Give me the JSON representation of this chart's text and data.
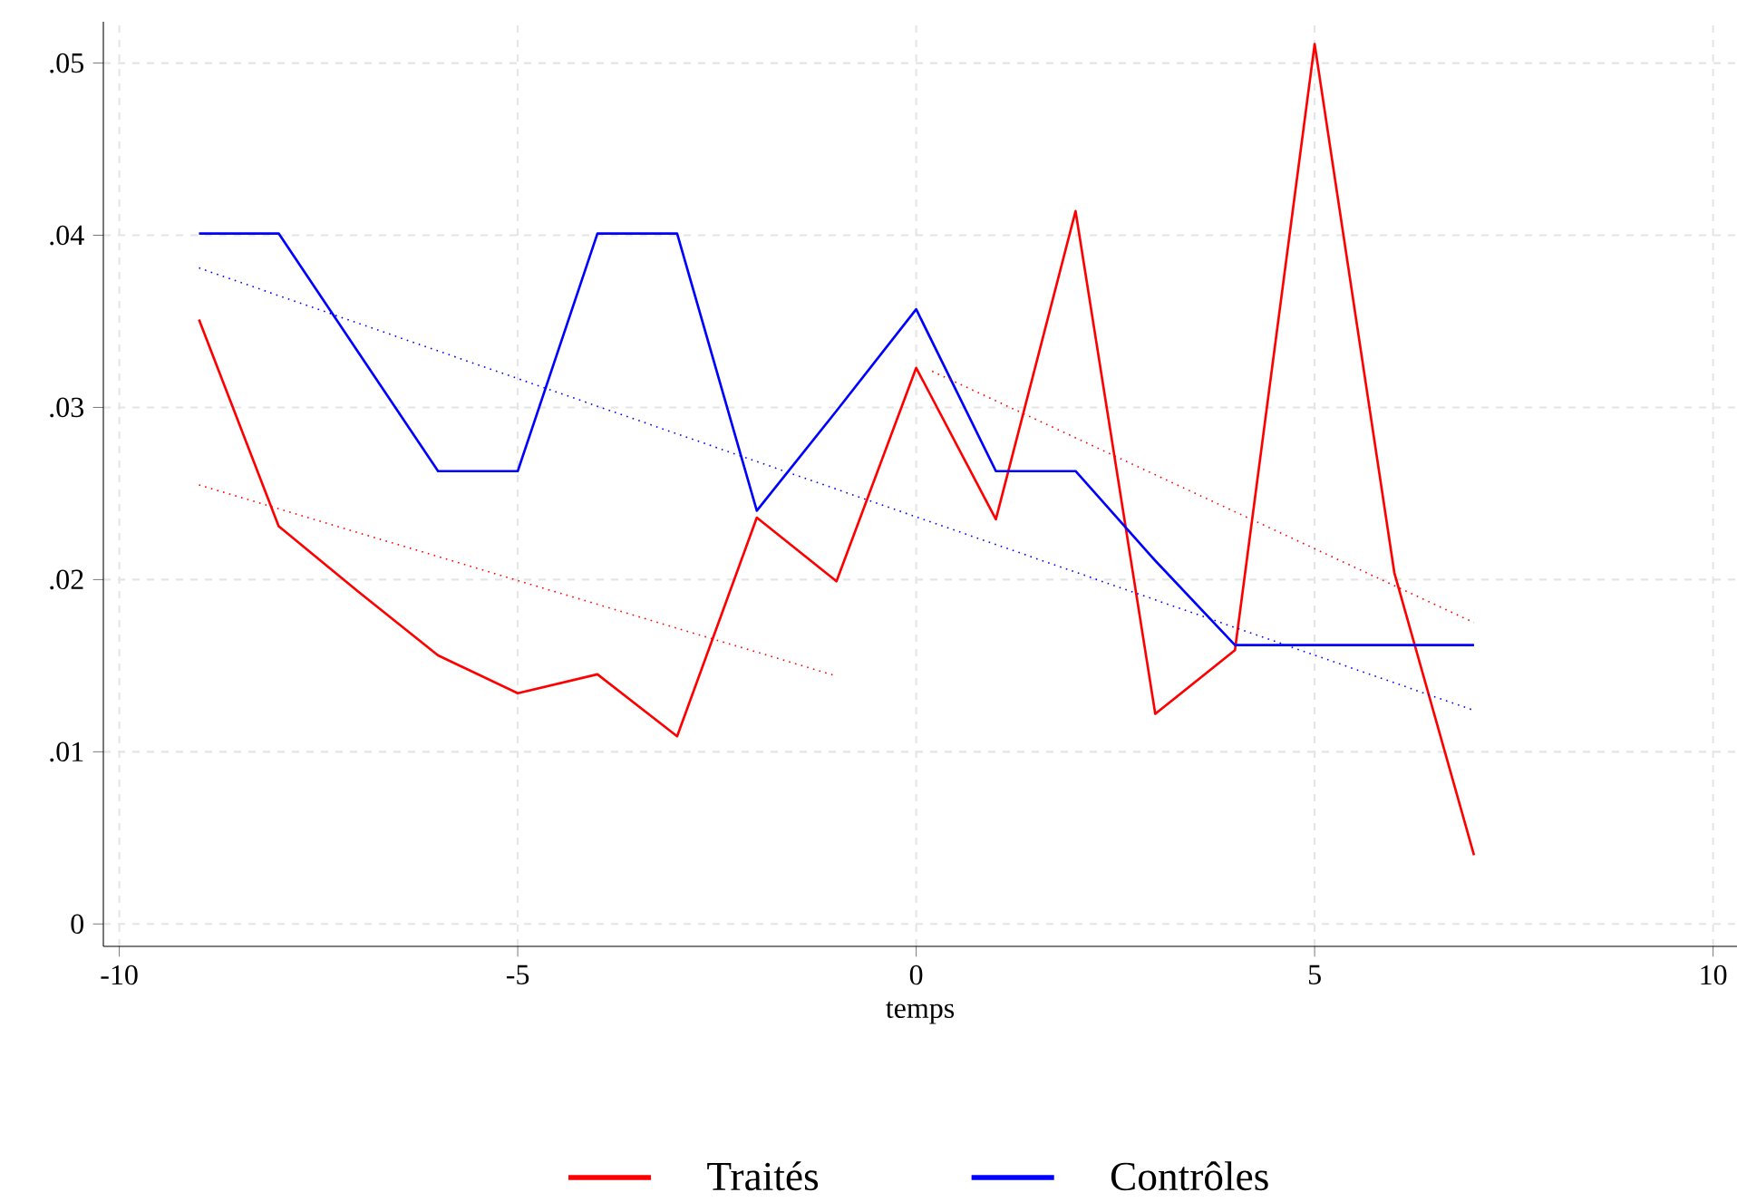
{
  "chart_data": {
    "type": "line",
    "xlabel": "temps",
    "series": [
      {
        "name": "Traités",
        "color": "#ff0000",
        "line_style": "solid",
        "x": [
          -9,
          -8,
          -7,
          -6,
          -5,
          -4,
          -3,
          -2,
          -1,
          0,
          1,
          2,
          3,
          4,
          5,
          6,
          7
        ],
        "values": [
          0.0351,
          0.0231,
          0.0193,
          0.0156,
          0.0134,
          0.0145,
          0.0109,
          0.0236,
          0.0199,
          0.0323,
          0.0235,
          0.0414,
          0.0122,
          0.0159,
          0.0511,
          0.0204,
          0.004
        ]
      },
      {
        "name": "Contrôles",
        "color": "#0000ff",
        "line_style": "solid",
        "x": [
          -9,
          -8,
          -7,
          -6,
          -5,
          -4,
          -3,
          -2,
          -1,
          0,
          1,
          2,
          3,
          4,
          5,
          6,
          7
        ],
        "values": [
          0.0401,
          0.0401,
          0.0332,
          0.0263,
          0.0263,
          0.0401,
          0.0401,
          0.024,
          0.0298,
          0.0357,
          0.0263,
          0.0263,
          0.0211,
          0.0162,
          0.0162,
          0.0162,
          0.0162
        ]
      },
      {
        "color": "#ff0000",
        "line_style": "dotted",
        "x": [
          -9,
          -1
        ],
        "values": [
          0.0255,
          0.0144
        ]
      },
      {
        "color": "#ff0000",
        "line_style": "dotted",
        "x": [
          0.2,
          7
        ],
        "values": [
          0.0321,
          0.0175
        ]
      },
      {
        "color": "#0000ff",
        "line_style": "dotted",
        "x": [
          -9,
          7
        ],
        "values": [
          0.0381,
          0.0124
        ]
      }
    ],
    "xlim": [
      -10.2,
      10.3
    ],
    "ylim": [
      -0.0013,
      0.0524
    ],
    "xticks": [
      -10,
      -5,
      0,
      5,
      10
    ],
    "yticks": [
      {
        "value": 0,
        "label": "0"
      },
      {
        "value": 0.01,
        "label": ".01"
      },
      {
        "value": 0.02,
        "label": ".02"
      },
      {
        "value": 0.03,
        "label": ".03"
      },
      {
        "value": 0.04,
        "label": ".04"
      },
      {
        "value": 0.05,
        "label": ".05"
      }
    ],
    "grid": true,
    "legend": "bottom"
  }
}
